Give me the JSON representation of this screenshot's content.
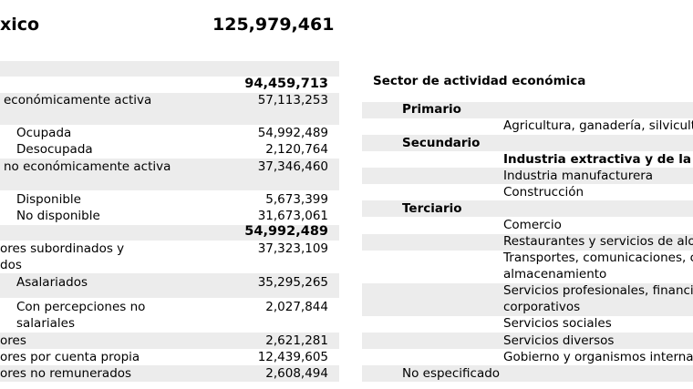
{
  "header": {
    "title_fragment": "xico",
    "total": "125,979,461"
  },
  "left_table": {
    "row_total": "94,459,713",
    "pea_label": "económicamente activa",
    "pea_value": "57,113,253",
    "ocupada_label": "Ocupada",
    "ocupada_value": "54,992,489",
    "desocupada_label": "Desocupada",
    "desocupada_value": "2,120,764",
    "pnea_label": "no económicamente activa",
    "pnea_value": "37,346,460",
    "disponible_label": "Disponible",
    "disponible_value": "5,673,399",
    "nodisponible_label": "No disponible",
    "nodisponible_value": "31,673,061",
    "ocupada_total": "54,992,489",
    "subord_label_1": "ores subordinados y",
    "subord_label_2": "dos",
    "subord_value": "37,323,109",
    "asalariados_label": "Asalariados",
    "asalariados_value": "35,295,265",
    "percep_label_1": "Con percepciones no",
    "percep_label_2": "salariales",
    "percep_value": "2,027,844",
    "empleadores_label": "ores",
    "empleadores_value": "2,621,281",
    "cuentapropia_label": "ores por cuenta propia",
    "cuentapropia_value": "12,439,605",
    "noremun_label": "ores no remunerados",
    "noremun_value": "2,608,494"
  },
  "right_table": {
    "heading": "Sector de actividad económica",
    "primario": "Primario",
    "agri": "Agricultura, ganadería, silvicultu",
    "secundario": "Secundario",
    "ind_extractiva": "Industria extractiva y de la",
    "ind_manufacturera": "Industria manufacturera",
    "construccion": "Construcción",
    "terciario": "Terciario",
    "comercio": "Comercio",
    "restaurantes": "Restaurantes y servicios de aloj",
    "transportes_1": "Transportes, comunicaciones, c",
    "transportes_2": "almacenamiento",
    "profesionales_1": "Servicios profesionales, financie",
    "profesionales_2": "corporativos",
    "sociales": "Servicios sociales",
    "diversos": "Servicios diversos",
    "gobierno": "Gobierno y organismos internac",
    "no_especificado": "No especificado"
  }
}
